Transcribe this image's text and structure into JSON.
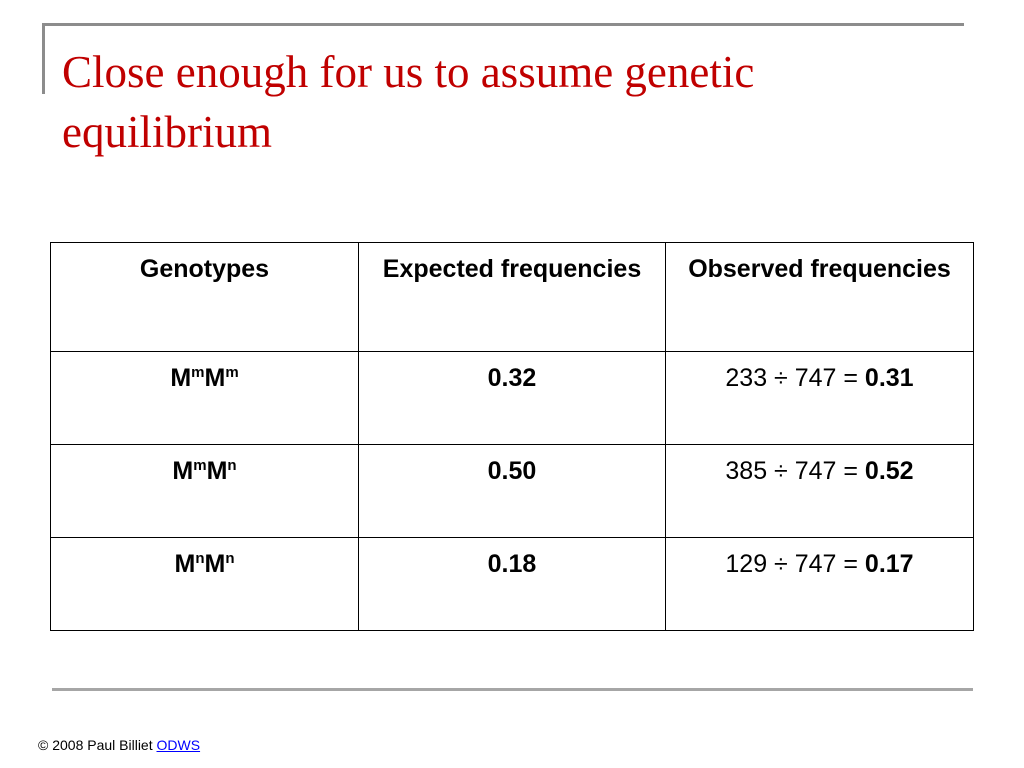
{
  "slide": {
    "title": "Close enough for us to assume genetic equilibrium"
  },
  "table": {
    "headers": [
      "Genotypes",
      "Expected frequencies",
      "Observed frequencies"
    ],
    "rows": [
      {
        "genotype_base1": "M",
        "genotype_sup1": "m",
        "genotype_base2": "M",
        "genotype_sup2": "m",
        "expected": "0.32",
        "observed_calc": "233 ÷ 747 = ",
        "observed_result": "0.31"
      },
      {
        "genotype_base1": "M",
        "genotype_sup1": "m",
        "genotype_base2": "M",
        "genotype_sup2": "n",
        "expected": "0.50",
        "observed_calc": "385 ÷ 747 = ",
        "observed_result": "0.52"
      },
      {
        "genotype_base1": "M",
        "genotype_sup1": "n",
        "genotype_base2": "M",
        "genotype_sup2": "n",
        "expected": "0.18",
        "observed_calc": "129 ÷ 747 = ",
        "observed_result": "0.17"
      }
    ]
  },
  "footer": {
    "copyright": "© 2008 Paul Billiet ",
    "link_text": "ODWS"
  },
  "colors": {
    "title": "#c00000",
    "link": "#0000ff",
    "rule": "#8c8c8c"
  }
}
